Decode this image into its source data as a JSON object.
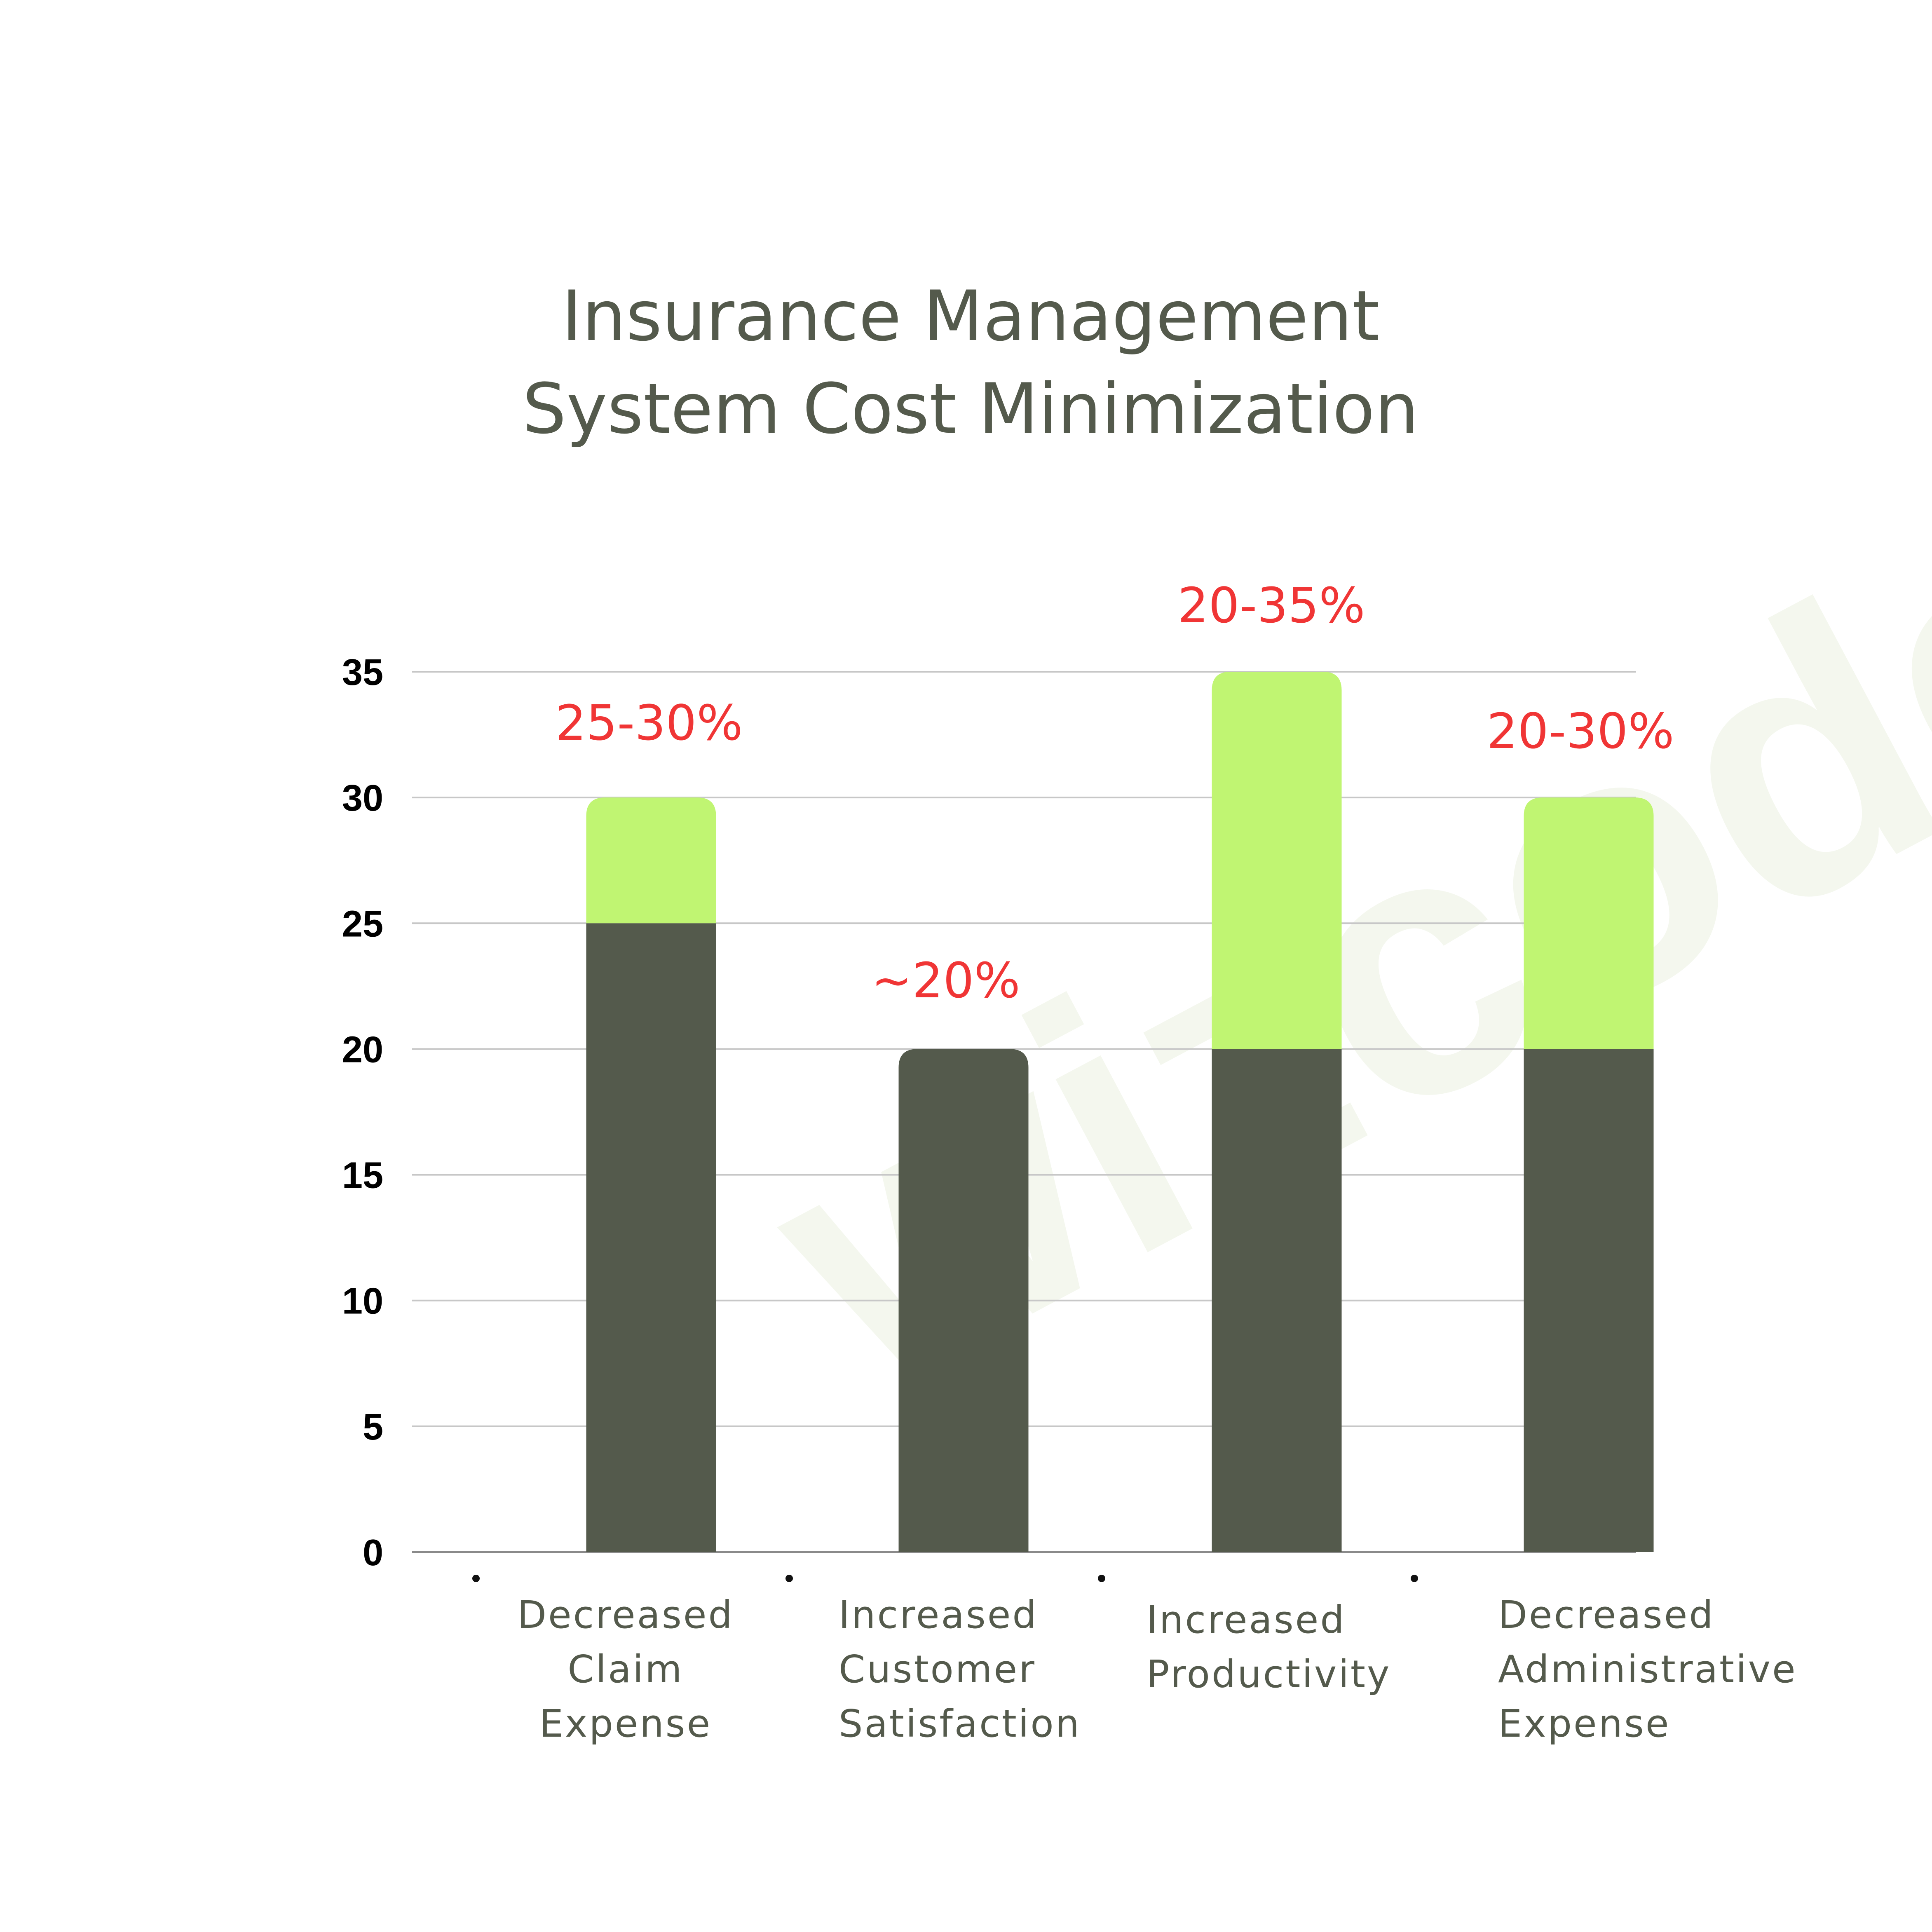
{
  "colors": {
    "base": "#545a4c",
    "top": "#c0f572",
    "label": "#f03535",
    "grid": "#c7c7c7",
    "title": "#545a4c"
  },
  "watermark": {
    "text": "wizcodes.com"
  },
  "chart_data": {
    "type": "bar",
    "stacked": true,
    "title": [
      "Insurance Management",
      "System Cost Minimization"
    ],
    "categories": [
      [
        "Decreased",
        "Claim",
        "Expense"
      ],
      [
        "Increased",
        "Customer",
        "Satisfaction"
      ],
      [
        "Increased",
        "Productivity"
      ],
      [
        "Decreased",
        "Administrative",
        "Expense"
      ]
    ],
    "series": [
      {
        "values": [
          25,
          20,
          20,
          20
        ]
      },
      {
        "values": [
          5,
          0,
          15,
          10
        ]
      }
    ],
    "data_labels": [
      "25-30%",
      "~20%",
      "20-35%",
      "20-30%"
    ],
    "ylim": [
      0,
      35
    ],
    "yticks": [
      0,
      5,
      10,
      15,
      20,
      25,
      30,
      35
    ],
    "grid": true,
    "legend": "none"
  }
}
